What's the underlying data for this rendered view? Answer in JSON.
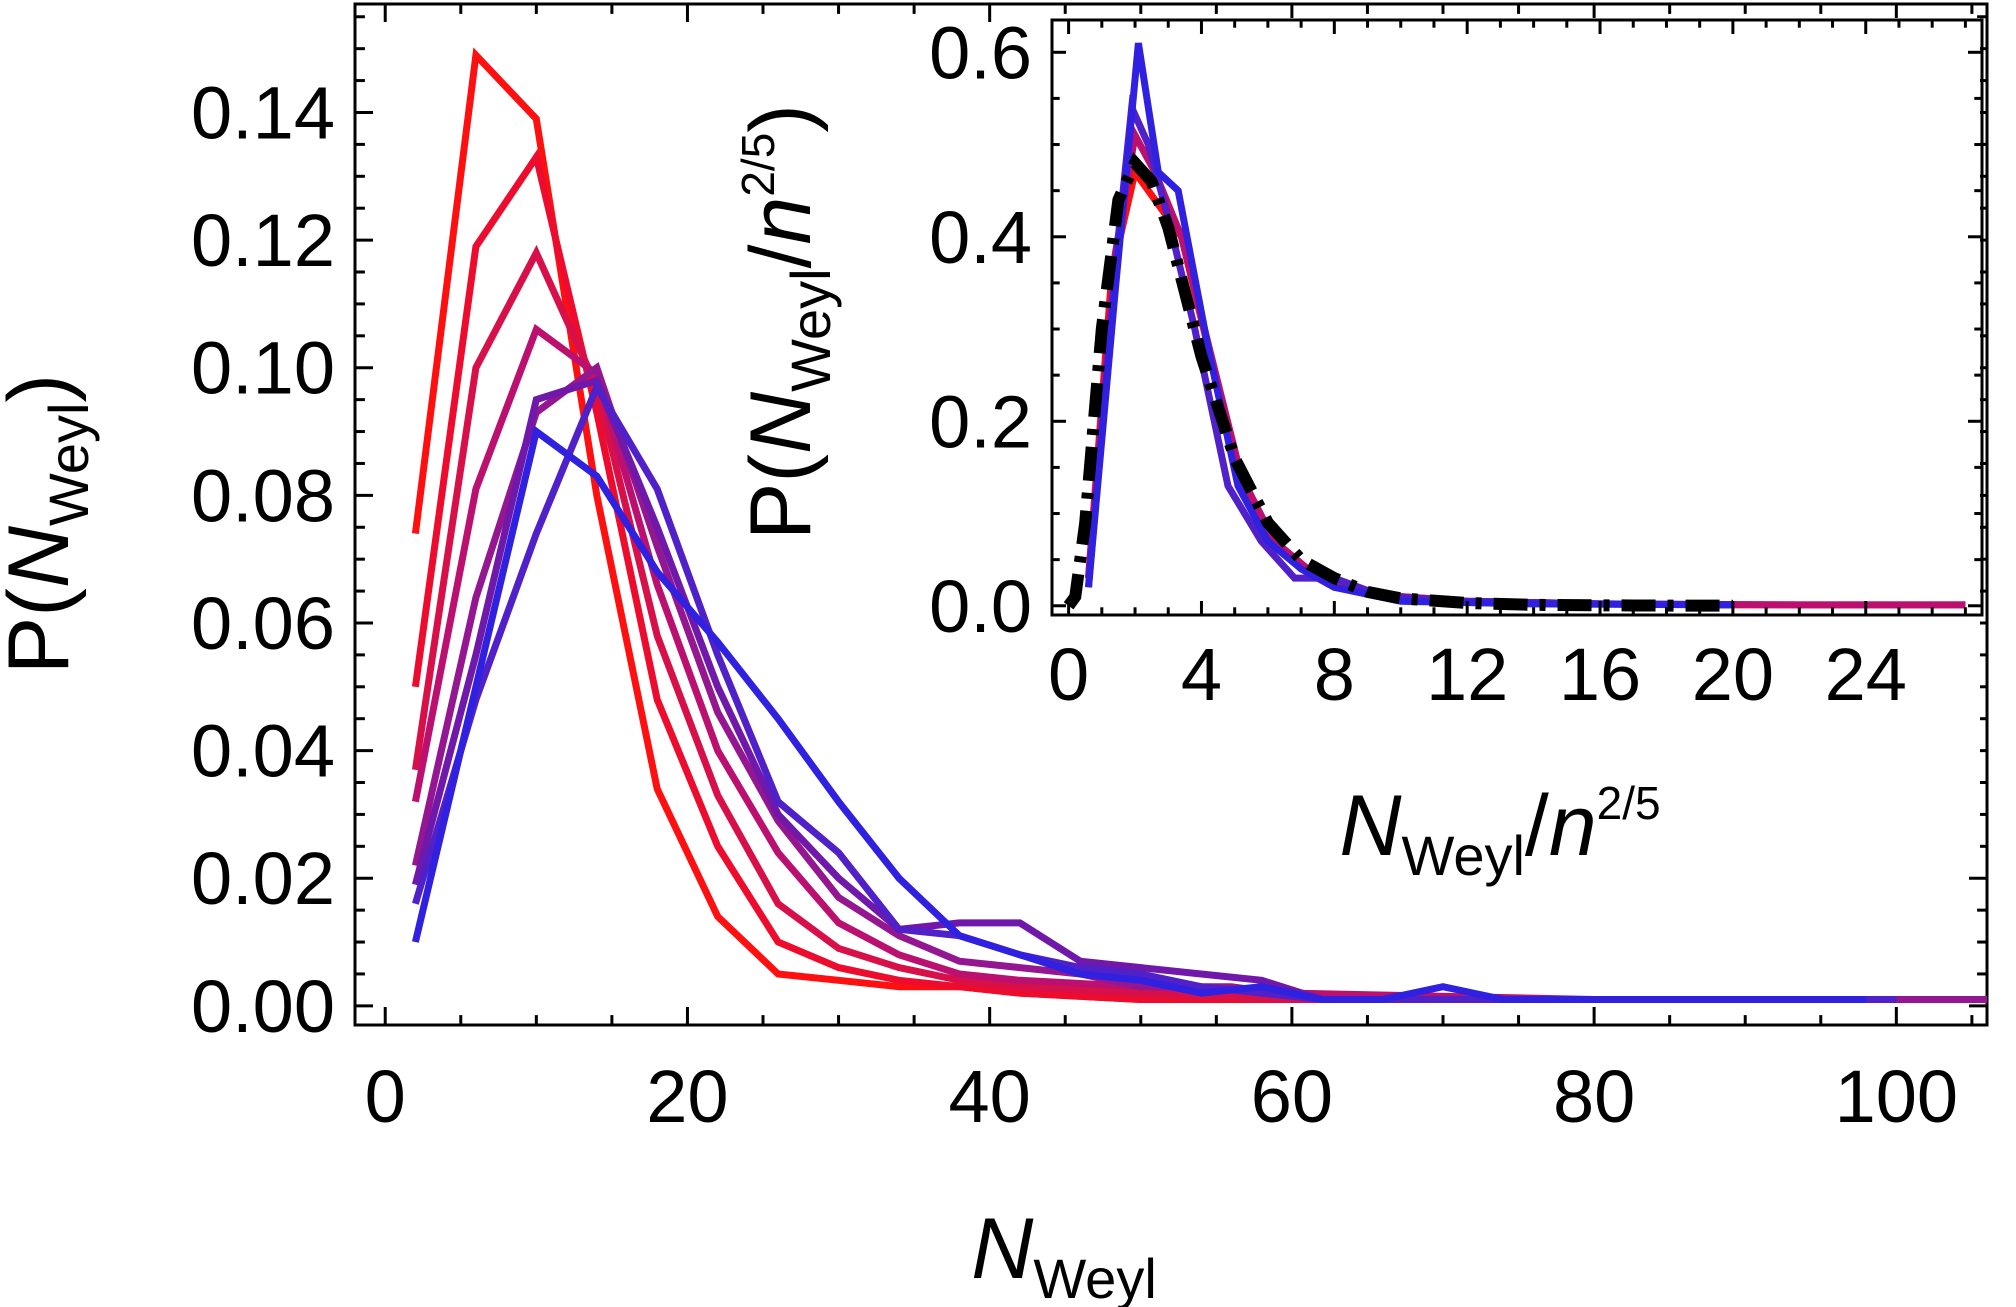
{
  "chart_data": [
    {
      "type": "line",
      "xlabel": {
        "main": "N",
        "sub": "Weyl"
      },
      "ylabel": {
        "prefix": "P(",
        "main": "N",
        "sub": "Weyl",
        "suffix": ")"
      },
      "xlim": [
        -2,
        106
      ],
      "ylim": [
        -0.003,
        0.157
      ],
      "xticks": [
        0,
        20,
        40,
        60,
        80,
        100
      ],
      "xtick_labels": [
        "0",
        "20",
        "40",
        "60",
        "80",
        "100"
      ],
      "yticks": [
        0,
        0.02,
        0.04,
        0.06,
        0.08,
        0.1,
        0.12,
        0.14
      ],
      "ytick_labels": [
        "0.00",
        "0.02",
        "0.04",
        "0.06",
        "0.08",
        "0.10",
        "0.12",
        "0.14"
      ],
      "grid": false,
      "series": [
        {
          "color": "#ff1010",
          "points": [
            [
              2,
              0.074
            ],
            [
              6,
              0.149
            ],
            [
              10,
              0.139
            ],
            [
              14,
              0.08
            ],
            [
              18,
              0.034
            ],
            [
              22,
              0.014
            ],
            [
              26,
              0.005
            ],
            [
              30,
              0.004
            ],
            [
              34,
              0.003
            ],
            [
              38,
              0.003
            ],
            [
              42,
              0.002
            ],
            [
              50,
              0.001
            ],
            [
              60,
              0.001
            ],
            [
              80,
              0.001
            ],
            [
              100,
              0.001
            ]
          ]
        },
        {
          "color": "#ee0c2e",
          "points": [
            [
              2,
              0.05
            ],
            [
              6,
              0.119
            ],
            [
              10,
              0.133
            ],
            [
              14,
              0.093
            ],
            [
              18,
              0.048
            ],
            [
              22,
              0.025
            ],
            [
              26,
              0.01
            ],
            [
              30,
              0.006
            ],
            [
              34,
              0.004
            ],
            [
              38,
              0.003
            ],
            [
              42,
              0.002
            ],
            [
              50,
              0.001
            ],
            [
              60,
              0.001
            ],
            [
              80,
              0.001
            ],
            [
              100,
              0.001
            ]
          ]
        },
        {
          "color": "#d8104a",
          "points": [
            [
              2,
              0.037
            ],
            [
              6,
              0.1
            ],
            [
              10,
              0.118
            ],
            [
              14,
              0.097
            ],
            [
              18,
              0.058
            ],
            [
              22,
              0.033
            ],
            [
              26,
              0.016
            ],
            [
              30,
              0.009
            ],
            [
              34,
              0.006
            ],
            [
              38,
              0.004
            ],
            [
              42,
              0.003
            ],
            [
              50,
              0.002
            ],
            [
              60,
              0.001
            ],
            [
              80,
              0.001
            ],
            [
              100,
              0.001
            ]
          ]
        },
        {
          "color": "#bb1070",
          "points": [
            [
              2,
              0.032
            ],
            [
              6,
              0.081
            ],
            [
              10,
              0.106
            ],
            [
              14,
              0.099
            ],
            [
              18,
              0.066
            ],
            [
              22,
              0.04
            ],
            [
              26,
              0.024
            ],
            [
              30,
              0.013
            ],
            [
              34,
              0.008
            ],
            [
              38,
              0.005
            ],
            [
              42,
              0.004
            ],
            [
              50,
              0.003
            ],
            [
              60,
              0.002
            ],
            [
              80,
              0.001
            ],
            [
              100,
              0.001
            ],
            [
              106,
              0.001
            ]
          ]
        },
        {
          "color": "#941690",
          "points": [
            [
              2,
              0.022
            ],
            [
              6,
              0.064
            ],
            [
              10,
              0.093
            ],
            [
              14,
              0.1
            ],
            [
              18,
              0.072
            ],
            [
              22,
              0.046
            ],
            [
              26,
              0.029
            ],
            [
              30,
              0.017
            ],
            [
              34,
              0.011
            ],
            [
              38,
              0.007
            ],
            [
              42,
              0.006
            ],
            [
              46,
              0.005
            ],
            [
              50,
              0.003
            ],
            [
              56,
              0.003
            ],
            [
              62,
              0.001
            ],
            [
              70,
              0.001
            ],
            [
              80,
              0.001
            ],
            [
              106,
              0.001
            ]
          ]
        },
        {
          "color": "#7018aa",
          "points": [
            [
              2,
              0.019
            ],
            [
              6,
              0.055
            ],
            [
              10,
              0.095
            ],
            [
              14,
              0.098
            ],
            [
              18,
              0.075
            ],
            [
              22,
              0.05
            ],
            [
              26,
              0.03
            ],
            [
              30,
              0.02
            ],
            [
              34,
              0.012
            ],
            [
              38,
              0.013
            ],
            [
              42,
              0.013
            ],
            [
              46,
              0.007
            ],
            [
              50,
              0.006
            ],
            [
              54,
              0.005
            ],
            [
              58,
              0.004
            ],
            [
              62,
              0.001
            ],
            [
              70,
              0.001
            ],
            [
              80,
              0.001
            ],
            [
              100,
              0.001
            ]
          ]
        },
        {
          "color": "#5020c8",
          "points": [
            [
              2,
              0.016
            ],
            [
              6,
              0.048
            ],
            [
              10,
              0.074
            ],
            [
              14,
              0.097
            ],
            [
              18,
              0.081
            ],
            [
              22,
              0.055
            ],
            [
              26,
              0.032
            ],
            [
              30,
              0.024
            ],
            [
              34,
              0.012
            ],
            [
              38,
              0.011
            ],
            [
              42,
              0.008
            ],
            [
              46,
              0.006
            ],
            [
              50,
              0.005
            ],
            [
              54,
              0.003
            ],
            [
              58,
              0.002
            ],
            [
              62,
              0.001
            ],
            [
              70,
              0.001
            ],
            [
              90,
              0.001
            ],
            [
              100,
              0.001
            ]
          ]
        },
        {
          "color": "#3020e0",
          "points": [
            [
              2,
              0.01
            ],
            [
              6,
              0.05
            ],
            [
              10,
              0.09
            ],
            [
              14,
              0.083
            ],
            [
              18,
              0.068
            ],
            [
              22,
              0.057
            ],
            [
              26,
              0.045
            ],
            [
              30,
              0.032
            ],
            [
              34,
              0.02
            ],
            [
              38,
              0.011
            ],
            [
              42,
              0.008
            ],
            [
              46,
              0.005
            ],
            [
              50,
              0.004
            ],
            [
              54,
              0.002
            ],
            [
              58,
              0.003
            ],
            [
              62,
              0.001
            ],
            [
              66,
              0.001
            ],
            [
              70,
              0.003
            ],
            [
              74,
              0.001
            ],
            [
              80,
              0.001
            ],
            [
              90,
              0.001
            ],
            [
              98,
              0.001
            ]
          ]
        }
      ]
    },
    {
      "type": "line",
      "xlabel": {
        "main": "N",
        "sub": "Weyl",
        "mid": "/",
        "main2": "n",
        "sup": "2/5"
      },
      "ylabel": {
        "prefix": "P(",
        "main": "N",
        "sub": "Weyl",
        "mid": "/",
        "main2": "n",
        "sup": "2/5",
        "suffix": ")"
      },
      "xlim": [
        -0.5,
        27.5
      ],
      "ylim": [
        -0.01,
        0.635
      ],
      "xticks": [
        0,
        4,
        8,
        12,
        16,
        20,
        24
      ],
      "xtick_labels": [
        "0",
        "4",
        "8",
        "12",
        "16",
        "20",
        "24"
      ],
      "yticks": [
        0,
        0.2,
        0.4,
        0.6
      ],
      "ytick_labels": [
        "0.0",
        "0.2",
        "0.4",
        "0.6"
      ],
      "grid": false,
      "series": [
        {
          "color": "#ff1010",
          "points": [
            [
              0.6,
              0.03
            ],
            [
              1.3,
              0.36
            ],
            [
              2.0,
              0.47
            ],
            [
              2.6,
              0.44
            ],
            [
              3.4,
              0.4
            ],
            [
              4.2,
              0.28
            ],
            [
              5.0,
              0.15
            ],
            [
              6.0,
              0.08
            ],
            [
              7.0,
              0.04
            ],
            [
              8.0,
              0.02
            ],
            [
              10,
              0.01
            ],
            [
              12,
              0.005
            ],
            [
              16,
              0.002
            ],
            [
              20,
              0.001
            ],
            [
              24,
              0.001
            ],
            [
              27,
              0.001
            ]
          ]
        },
        {
          "color": "#bb1070",
          "points": [
            [
              0.6,
              0.03
            ],
            [
              1.4,
              0.38
            ],
            [
              2.0,
              0.51
            ],
            [
              2.6,
              0.47
            ],
            [
              3.4,
              0.4
            ],
            [
              4.3,
              0.27
            ],
            [
              5.2,
              0.14
            ],
            [
              6.2,
              0.07
            ],
            [
              7.2,
              0.04
            ],
            [
              8.2,
              0.02
            ],
            [
              10,
              0.01
            ],
            [
              12,
              0.005
            ],
            [
              16,
              0.002
            ],
            [
              22,
              0.001
            ],
            [
              27,
              0.001
            ]
          ]
        },
        {
          "color": "#5020c8",
          "points": [
            [
              0.6,
              0.02
            ],
            [
              1.5,
              0.4
            ],
            [
              1.9,
              0.54
            ],
            [
              2.4,
              0.5
            ],
            [
              3.0,
              0.42
            ],
            [
              3.8,
              0.3
            ],
            [
              4.8,
              0.13
            ],
            [
              5.8,
              0.07
            ],
            [
              6.8,
              0.03
            ],
            [
              8.0,
              0.03
            ],
            [
              9.5,
              0.01
            ],
            [
              12,
              0.005
            ],
            [
              16,
              0.002
            ],
            [
              20,
              0.001
            ]
          ]
        },
        {
          "color": "#3020e0",
          "points": [
            [
              0.6,
              0.02
            ],
            [
              1.4,
              0.34
            ],
            [
              2.1,
              0.61
            ],
            [
              2.7,
              0.47
            ],
            [
              3.3,
              0.45
            ],
            [
              4.2,
              0.28
            ],
            [
              5.1,
              0.13
            ],
            [
              6.0,
              0.07
            ],
            [
              7.0,
              0.04
            ],
            [
              8.0,
              0.02
            ],
            [
              10,
              0.005
            ],
            [
              14,
              0.002
            ],
            [
              20,
              0.001
            ]
          ]
        }
      ],
      "fit": {
        "style": "dash-dot",
        "color": "#000000",
        "points": [
          [
            0,
            0
          ],
          [
            0.2,
            0.01
          ],
          [
            0.5,
            0.09
          ],
          [
            1.0,
            0.3
          ],
          [
            1.5,
            0.44
          ],
          [
            2.0,
            0.48
          ],
          [
            2.5,
            0.46
          ],
          [
            3.0,
            0.41
          ],
          [
            3.5,
            0.34
          ],
          [
            4.0,
            0.27
          ],
          [
            5.0,
            0.16
          ],
          [
            6.0,
            0.09
          ],
          [
            7.0,
            0.05
          ],
          [
            8.0,
            0.03
          ],
          [
            9.0,
            0.015
          ],
          [
            10,
            0.008
          ],
          [
            12,
            0.003
          ],
          [
            14,
            0.001
          ],
          [
            17,
            0.0003
          ],
          [
            20,
            0.0001
          ]
        ]
      }
    }
  ]
}
